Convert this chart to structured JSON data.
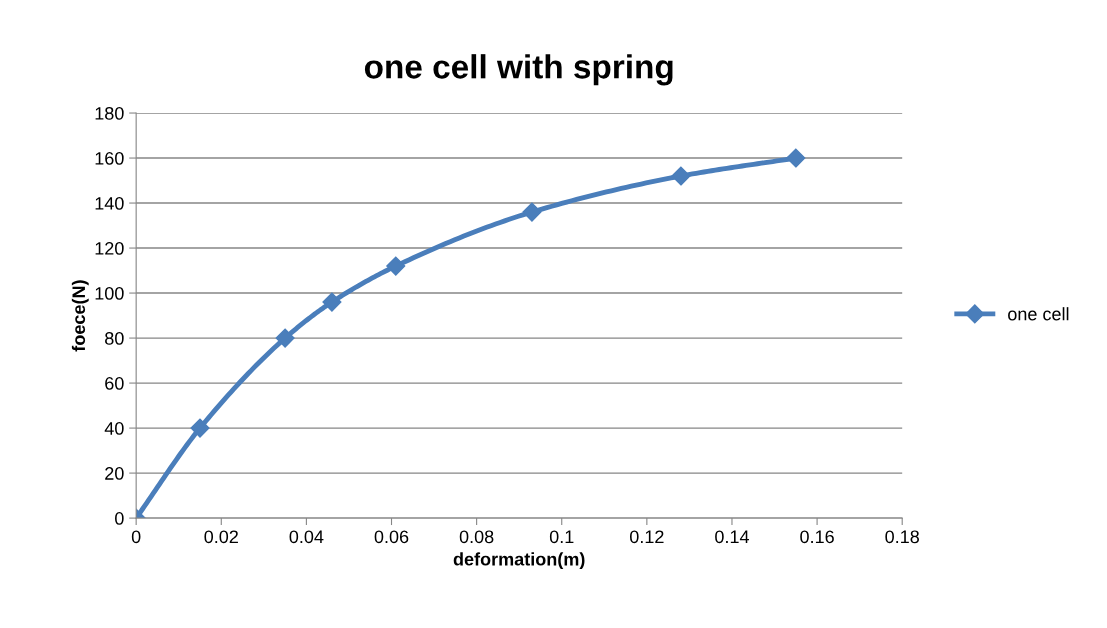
{
  "chart_data": {
    "type": "line",
    "title": "one cell with spring",
    "xlabel": "deformation(m)",
    "ylabel": "foece(N)",
    "x": [
      0,
      0.015,
      0.035,
      0.046,
      0.061,
      0.093,
      0.128,
      0.155
    ],
    "series": [
      {
        "name": "one cell",
        "color": "#4a7ebb",
        "values": [
          0,
          40,
          80,
          96,
          112,
          136,
          152,
          160
        ]
      }
    ],
    "xlim": [
      0,
      0.18
    ],
    "xticks": [
      0,
      0.02,
      0.04,
      0.06,
      0.08,
      0.1,
      0.12,
      0.14,
      0.16,
      0.18
    ],
    "ylim": [
      0,
      180
    ],
    "yticks": [
      0,
      20,
      40,
      60,
      80,
      100,
      120,
      140,
      160,
      180
    ],
    "grid": "y",
    "legend": "right",
    "marker": "diamond",
    "line_style": "solid"
  }
}
